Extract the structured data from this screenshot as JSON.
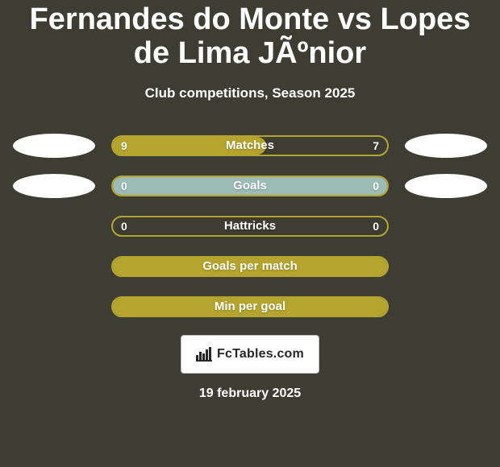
{
  "background_color": "#3d3d33",
  "text_color": "#ffffff",
  "title": "Fernandes do Monte vs Lopes de Lima JÃºnior",
  "title_fontsize": 38,
  "subtitle": "Club competitions, Season 2025",
  "subtitle_fontsize": 17,
  "oval_colors": {
    "left": "#ffffff",
    "right": "#ffffff"
  },
  "bars": {
    "outer_color": "#3d3d33",
    "border_color": "#b5a52e",
    "border_width": 2,
    "label_color": "#ffffff",
    "value_color": "#ffffff",
    "items": [
      {
        "label": "Matches",
        "left": "9",
        "right": "7",
        "fill_percent": 56,
        "fill_color": "#b5a52e",
        "show_ovals": true,
        "show_values": true
      },
      {
        "label": "Goals",
        "left": "0",
        "right": "0",
        "fill_percent": 100,
        "fill_color": "#9bbdb6",
        "show_ovals": true,
        "show_values": true
      },
      {
        "label": "Hattricks",
        "left": "0",
        "right": "0",
        "fill_percent": 0,
        "fill_color": "#b5a52e",
        "show_ovals": false,
        "show_values": true
      },
      {
        "label": "Goals per match",
        "left": "",
        "right": "",
        "fill_percent": 100,
        "fill_color": "#b5a52e",
        "show_ovals": false,
        "show_values": false
      },
      {
        "label": "Min per goal",
        "left": "",
        "right": "",
        "fill_percent": 100,
        "fill_color": "#b5a52e",
        "show_ovals": false,
        "show_values": false
      }
    ]
  },
  "attribution": {
    "text": "FcTables.com",
    "box_bg": "#ffffff",
    "box_border": "#bfbfbf",
    "text_color": "#262626",
    "fontsize": 16
  },
  "date": "19 february 2025",
  "date_fontsize": 16
}
